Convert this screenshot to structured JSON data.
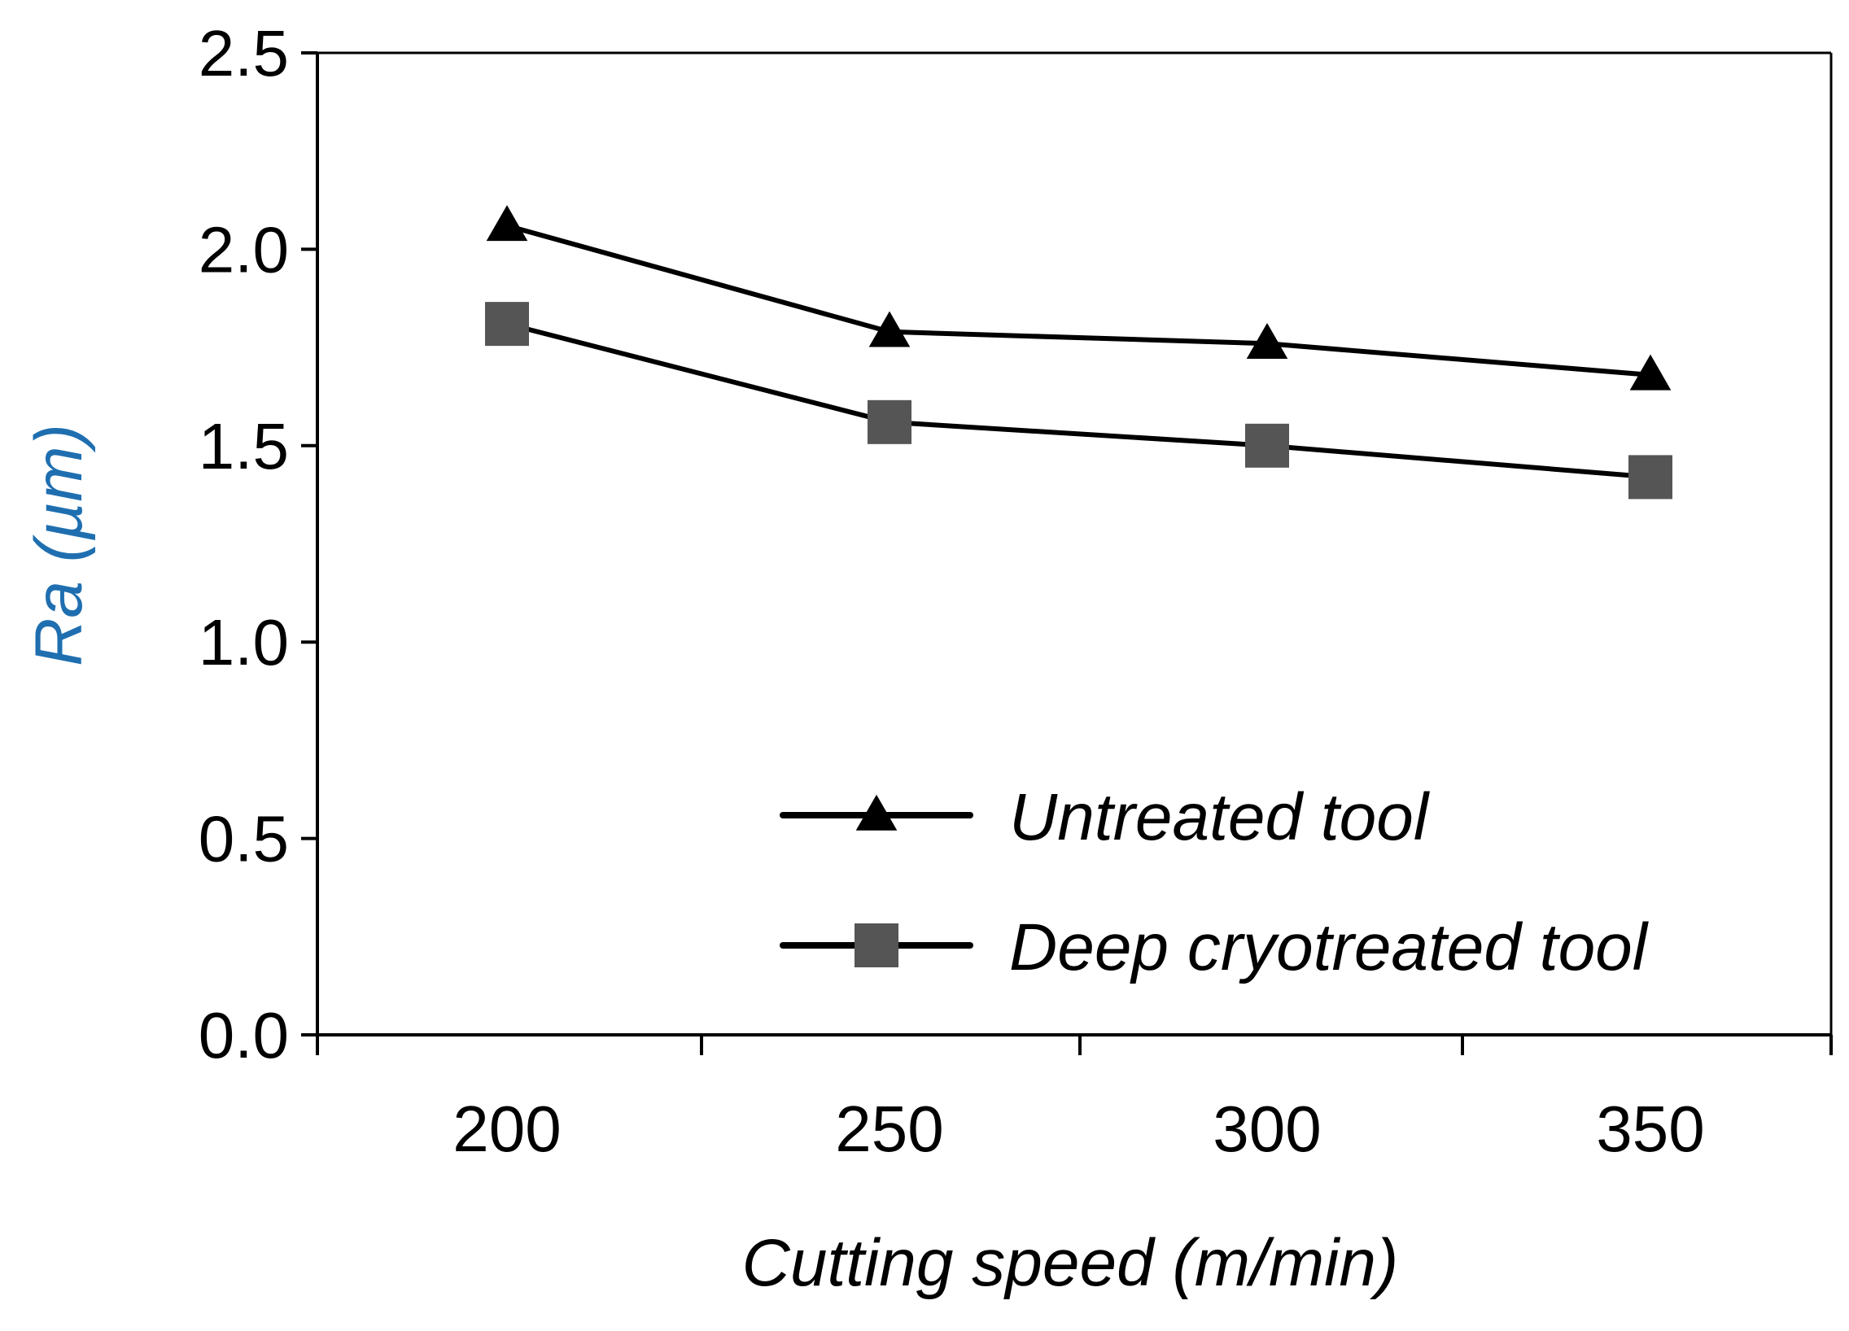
{
  "chart_data": {
    "type": "line",
    "title": "",
    "xlabel": "Cutting speed (m/min)",
    "ylabel": "Ra (µm)",
    "categories": [
      "200",
      "250",
      "300",
      "350"
    ],
    "ylim": [
      0,
      2.5
    ],
    "yticks": [
      "0.0",
      "0.5",
      "1.0",
      "1.5",
      "2.0",
      "2.5"
    ],
    "grid": false,
    "legend_position": "bottom-right",
    "series": [
      {
        "name": "Untreated tool",
        "marker": "triangle",
        "color": "#000000",
        "marker_color": "#000000",
        "values": [
          2.06,
          1.79,
          1.76,
          1.68
        ]
      },
      {
        "name": "Deep cryotreated tool",
        "marker": "square",
        "color": "#000000",
        "marker_color": "#555555",
        "values": [
          1.81,
          1.56,
          1.5,
          1.42
        ]
      }
    ]
  },
  "colors": {
    "axis": "#000000",
    "ylabel": "#1f6fb0",
    "xlabel": "#000000"
  }
}
